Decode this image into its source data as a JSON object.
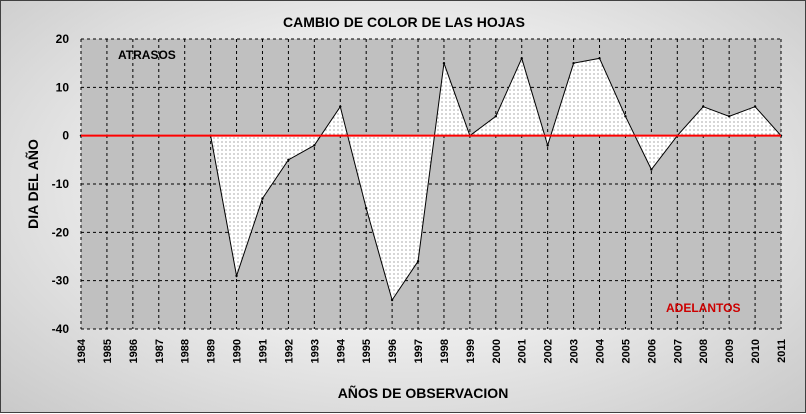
{
  "colors": {
    "zero_line": "#ff0000",
    "series_line": "#000000",
    "fill_pattern": "#707070",
    "annotation_retrasos": "#000000",
    "annotation_adelantos": "#cc0000",
    "grid": "#000000"
  },
  "chart_data": {
    "type": "area",
    "title": "CAMBIO DE COLOR DE LAS HOJAS",
    "xlabel": "AÑOS DE OBSERVACION",
    "ylabel": "DIA DEL AÑO",
    "ylim": [
      -40,
      20
    ],
    "y_ticks": [
      20,
      10,
      0,
      -10,
      -20,
      -30,
      -40
    ],
    "grid": true,
    "legend": "none",
    "categories": [
      "1984",
      "1985",
      "1986",
      "1987",
      "1988",
      "1989",
      "1990",
      "1991",
      "1992",
      "1993",
      "1994",
      "1995",
      "1996",
      "1997",
      "1998",
      "1999",
      "2000",
      "2001",
      "2002",
      "2003",
      "2004",
      "2005",
      "2006",
      "2007",
      "2008",
      "2009",
      "2010",
      "2011"
    ],
    "series": [
      {
        "values": [
          0,
          0,
          0,
          0,
          0,
          0,
          -29,
          -13,
          -5,
          -2,
          6,
          -15,
          -34,
          -26,
          15,
          0,
          4,
          16,
          -2,
          15,
          16,
          4,
          -7,
          0,
          6,
          4,
          6,
          0
        ]
      }
    ],
    "reference_line": {
      "y": 0
    },
    "annotations": [
      {
        "text": "ATRASOS",
        "position": "top-left"
      },
      {
        "text": "ADELANTOS",
        "position": "bottom-right"
      }
    ]
  }
}
